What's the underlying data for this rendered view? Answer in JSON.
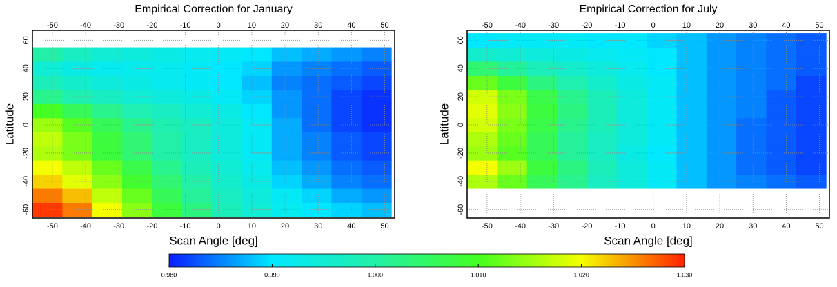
{
  "chart_data": [
    {
      "type": "heatmap",
      "title": "Empirical Correction for January",
      "xlabel": "Scan Angle [deg]",
      "ylabel": "Latitude",
      "x_edges": [
        -56,
        -47,
        -38,
        -29,
        -20,
        -11,
        -2,
        7,
        16,
        25,
        34,
        43,
        52
      ],
      "y_edges": [
        -65,
        -55,
        -45,
        -35,
        -25,
        -15,
        -5,
        5,
        15,
        25,
        35,
        45,
        55
      ],
      "z": [
        [
          1.029,
          1.026,
          1.02,
          1.014,
          1.008,
          1.003,
          0.998,
          0.995,
          0.992,
          0.99,
          0.989,
          0.988
        ],
        [
          1.026,
          1.023,
          1.017,
          1.012,
          1.006,
          1.001,
          0.997,
          0.994,
          0.991,
          0.989,
          0.987,
          0.986
        ],
        [
          1.022,
          1.019,
          1.014,
          1.009,
          1.004,
          1.0,
          0.996,
          0.993,
          0.989,
          0.987,
          0.985,
          0.984
        ],
        [
          1.02,
          1.017,
          1.012,
          1.007,
          1.002,
          0.998,
          0.995,
          0.992,
          0.988,
          0.986,
          0.984,
          0.983
        ],
        [
          1.016,
          1.013,
          1.008,
          1.004,
          1.0,
          0.997,
          0.994,
          0.991,
          0.987,
          0.985,
          0.983,
          0.982
        ],
        [
          1.017,
          1.013,
          1.008,
          1.004,
          1.0,
          0.997,
          0.994,
          0.991,
          0.987,
          0.985,
          0.983,
          0.982
        ],
        [
          1.015,
          1.011,
          1.006,
          1.002,
          0.999,
          0.997,
          0.994,
          0.991,
          0.987,
          0.984,
          0.982,
          0.981
        ],
        [
          1.01,
          1.006,
          1.002,
          0.999,
          0.997,
          0.995,
          0.993,
          0.99,
          0.986,
          0.984,
          0.982,
          0.981
        ],
        [
          1.002,
          0.999,
          0.997,
          0.995,
          0.994,
          0.993,
          0.991,
          0.989,
          0.986,
          0.984,
          0.982,
          0.981
        ],
        [
          0.998,
          0.996,
          0.994,
          0.993,
          0.992,
          0.991,
          0.99,
          0.988,
          0.985,
          0.984,
          0.983,
          0.982
        ],
        [
          0.995,
          0.993,
          0.992,
          0.992,
          0.992,
          0.991,
          0.99,
          0.989,
          0.986,
          0.985,
          0.984,
          0.983
        ],
        [
          1.0,
          0.997,
          0.995,
          0.994,
          0.993,
          0.992,
          0.991,
          0.99,
          0.988,
          0.987,
          0.986,
          0.985
        ]
      ],
      "xlim": [
        -56,
        53
      ],
      "ylim": [
        -66,
        67
      ],
      "xticks": [
        -50,
        -40,
        -30,
        -20,
        -10,
        0,
        10,
        20,
        30,
        40,
        50
      ],
      "yticks": [
        -60,
        -40,
        -20,
        0,
        20,
        40,
        60
      ],
      "grid": true
    },
    {
      "type": "heatmap",
      "title": "Empirical Correction for July",
      "xlabel": "Scan Angle [deg]",
      "ylabel": "Latitude",
      "x_edges": [
        -56,
        -47,
        -38,
        -29,
        -20,
        -11,
        -2,
        7,
        16,
        25,
        34,
        43,
        52
      ],
      "y_edges": [
        -45,
        -35,
        -25,
        -15,
        -5,
        5,
        15,
        25,
        35,
        45,
        55,
        65
      ],
      "z": [
        [
          1.016,
          1.012,
          1.006,
          1.002,
          0.997,
          0.994,
          0.991,
          0.988,
          0.986,
          0.985,
          0.984,
          0.983
        ],
        [
          1.02,
          1.015,
          1.008,
          1.003,
          0.998,
          0.994,
          0.991,
          0.988,
          0.986,
          0.984,
          0.983,
          0.982
        ],
        [
          1.015,
          1.011,
          1.006,
          1.001,
          0.997,
          0.993,
          0.99,
          0.988,
          0.986,
          0.984,
          0.983,
          0.982
        ],
        [
          1.016,
          1.012,
          1.006,
          1.001,
          0.997,
          0.994,
          0.991,
          0.988,
          0.986,
          0.984,
          0.983,
          0.982
        ],
        [
          1.018,
          1.013,
          1.007,
          1.002,
          0.998,
          0.994,
          0.991,
          0.988,
          0.986,
          0.984,
          0.983,
          0.982
        ],
        [
          1.019,
          1.014,
          1.008,
          1.003,
          0.998,
          0.994,
          0.991,
          0.988,
          0.986,
          0.985,
          0.983,
          0.982
        ],
        [
          1.018,
          1.013,
          1.007,
          1.002,
          0.998,
          0.994,
          0.991,
          0.988,
          0.986,
          0.985,
          0.983,
          0.982
        ],
        [
          1.012,
          1.008,
          1.003,
          0.999,
          0.996,
          0.993,
          0.991,
          0.988,
          0.986,
          0.985,
          0.984,
          0.982
        ],
        [
          1.004,
          1.001,
          0.998,
          0.996,
          0.994,
          0.992,
          0.99,
          0.988,
          0.986,
          0.985,
          0.984,
          0.983
        ],
        [
          0.996,
          0.995,
          0.994,
          0.993,
          0.992,
          0.991,
          0.99,
          0.988,
          0.986,
          0.985,
          0.984,
          0.983
        ],
        [
          0.99,
          0.991,
          0.991,
          0.991,
          0.99,
          0.99,
          0.989,
          0.988,
          0.986,
          0.985,
          0.984,
          0.983
        ]
      ],
      "xlim": [
        -56,
        53
      ],
      "ylim": [
        -66,
        67
      ],
      "xticks": [
        -50,
        -40,
        -30,
        -20,
        -10,
        0,
        10,
        20,
        30,
        40,
        50
      ],
      "yticks": [
        -60,
        -40,
        -20,
        0,
        20,
        40,
        60
      ],
      "grid": true
    }
  ],
  "colorbar": {
    "lim": [
      0.98,
      1.03
    ],
    "ticks": [
      {
        "value": 0.98,
        "label": "0.980"
      },
      {
        "value": 0.99,
        "label": "0.990"
      },
      {
        "value": 1.0,
        "label": "1.000"
      },
      {
        "value": 1.01,
        "label": "1.010"
      },
      {
        "value": 1.02,
        "label": "1.020"
      },
      {
        "value": 1.03,
        "label": "1.030"
      }
    ],
    "colors": [
      "#0a1eff",
      "#00e8ff",
      "#22f0a8",
      "#44ff22",
      "#f4ff00",
      "#ff2200"
    ]
  }
}
